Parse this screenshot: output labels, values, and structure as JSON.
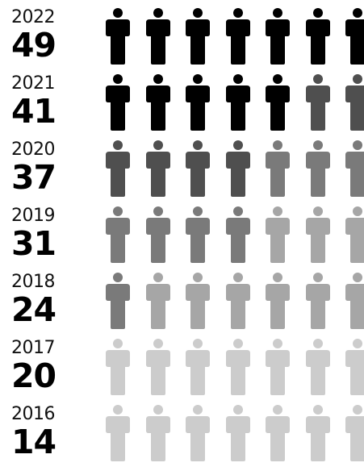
{
  "chart_data": {
    "type": "pictogram",
    "title": "",
    "rows": [
      {
        "year": "2022",
        "value": "49",
        "figure_levels": [
          0,
          0,
          0,
          0,
          0,
          0,
          0
        ]
      },
      {
        "year": "2021",
        "value": "41",
        "figure_levels": [
          0,
          0,
          0,
          0,
          0,
          1,
          1
        ]
      },
      {
        "year": "2020",
        "value": "37",
        "figure_levels": [
          1,
          1,
          1,
          1,
          2,
          2,
          2
        ]
      },
      {
        "year": "2019",
        "value": "31",
        "figure_levels": [
          2,
          2,
          2,
          2,
          3,
          3,
          3
        ]
      },
      {
        "year": "2018",
        "value": "24",
        "figure_levels": [
          2,
          3,
          3,
          3,
          3,
          3,
          3
        ]
      },
      {
        "year": "2017",
        "value": "20",
        "figure_levels": [
          4,
          4,
          4,
          4,
          4,
          4,
          4
        ]
      },
      {
        "year": "2016",
        "value": "14",
        "figure_levels": [
          4,
          4,
          4,
          4,
          4,
          4,
          4
        ]
      }
    ],
    "figure_colors": [
      "#000000",
      "#4f4f4f",
      "#7a7a7a",
      "#a6a6a6",
      "#cccccc"
    ],
    "figure_icon": "person-icon"
  }
}
